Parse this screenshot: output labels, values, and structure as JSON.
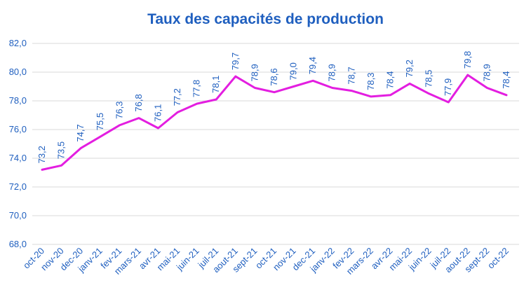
{
  "chart_data": {
    "type": "line",
    "title": "Taux des capacités de production",
    "xlabel": "",
    "ylabel": "",
    "ylim": [
      68,
      82
    ],
    "yticks": [
      "68,0",
      "70,0",
      "72,0",
      "74,0",
      "76,0",
      "78,0",
      "80,0",
      "82,0"
    ],
    "grid": true,
    "line_color": "#e31ee0",
    "text_color": "#1f5fbf",
    "categories": [
      "oct-20",
      "nov-20",
      "dec-20",
      "janv-21",
      "fev-21",
      "mars-21",
      "avr-21",
      "mai-21",
      "juin-21",
      "juil-21",
      "aout-21",
      "sept-21",
      "oct-21",
      "nov-21",
      "dec-21",
      "janv-22",
      "fev-22",
      "mars-22",
      "avr-22",
      "mai-22",
      "juin-22",
      "juil-22",
      "aout-22",
      "sept-22",
      "oct-22"
    ],
    "series": [
      {
        "values": [
          73.2,
          73.5,
          74.7,
          75.5,
          76.3,
          76.8,
          76.1,
          77.2,
          77.8,
          78.1,
          79.7,
          78.9,
          78.6,
          79.0,
          79.4,
          78.9,
          78.7,
          78.3,
          78.4,
          79.2,
          78.5,
          77.9,
          79.8,
          78.9,
          78.4
        ],
        "labels": [
          "73,2",
          "73,5",
          "74,7",
          "75,5",
          "76,3",
          "76,8",
          "76,1",
          "77,2",
          "77,8",
          "78,1",
          "79,7",
          "78,9",
          "78,6",
          "79,0",
          "79,4",
          "78,9",
          "78,7",
          "78,3",
          "78,4",
          "79,2",
          "78,5",
          "77,9",
          "79,8",
          "78,9",
          "78,4"
        ]
      }
    ]
  }
}
